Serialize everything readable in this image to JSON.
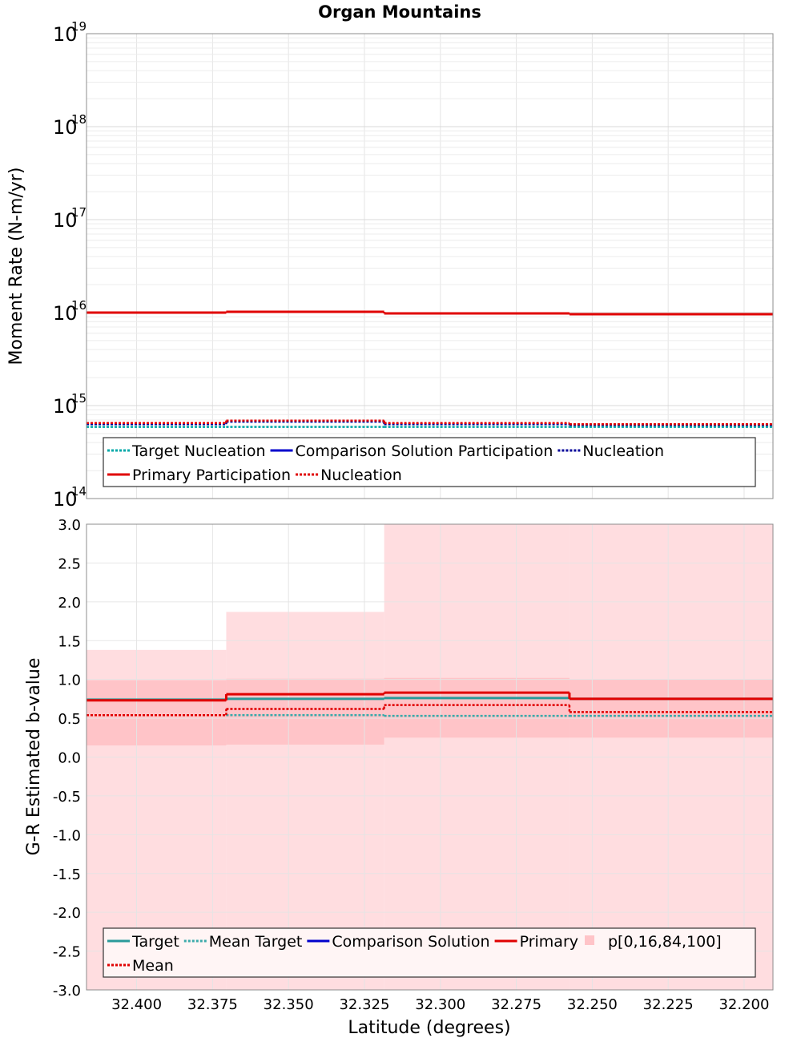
{
  "chart_data": {
    "title": "Organ Mountains",
    "xlabel": "Latitude (degrees)",
    "x_reversed": true,
    "xlim": [
      32.4165,
      32.1905
    ],
    "xticks": [
      {
        "v": 32.4,
        "label": "32.400"
      },
      {
        "v": 32.375,
        "label": "32.375"
      },
      {
        "v": 32.35,
        "label": "32.350"
      },
      {
        "v": 32.325,
        "label": "32.325"
      },
      {
        "v": 32.3,
        "label": "32.300"
      },
      {
        "v": 32.275,
        "label": "32.275"
      },
      {
        "v": 32.25,
        "label": "32.250"
      },
      {
        "v": 32.225,
        "label": "32.225"
      },
      {
        "v": 32.2,
        "label": "32.200"
      }
    ],
    "bin_edges": [
      32.4165,
      32.3705,
      32.3185,
      32.2575,
      32.1905
    ],
    "panels": [
      {
        "type": "line",
        "ylabel": "Moment Rate (N-m/yr)",
        "yscale": "log",
        "ylim_exp": [
          14,
          19
        ],
        "yticks": [
          {
            "exp": 19,
            "base": "10",
            "sup": "19"
          },
          {
            "exp": 18,
            "base": "10",
            "sup": "18"
          },
          {
            "exp": 17,
            "base": "10",
            "sup": "17"
          },
          {
            "exp": 16,
            "base": "10",
            "sup": "16"
          },
          {
            "exp": 15,
            "base": "10",
            "sup": "15"
          },
          {
            "exp": 14,
            "base": "10",
            "sup": "14"
          }
        ],
        "grid": true,
        "series": [
          {
            "name": "Target Nucleation",
            "color": "#00a8a8",
            "style": "dotted",
            "width": 2.5,
            "values": [
              590000000000000.0,
              590000000000000.0,
              590000000000000.0,
              590000000000000.0
            ]
          },
          {
            "name": "Comparison Solution Participation",
            "color": "#0000cc",
            "style": "solid",
            "width": 3,
            "values": [
              null,
              null,
              null,
              null
            ]
          },
          {
            "name": "Nucleation",
            "color": "#000099",
            "style": "dotted",
            "width": 2.5,
            "values": [
              630000000000000.0,
              670000000000000.0,
              630000000000000.0,
              620000000000000.0
            ]
          },
          {
            "name": "Primary Participation",
            "color": "#e00000",
            "style": "solid",
            "width": 3,
            "values": [
              1e+16,
              1.02e+16,
              9800000000000000.0,
              9600000000000000.0
            ]
          },
          {
            "name": "Nucleation",
            "color": "#e00000",
            "style": "dotted",
            "width": 2.5,
            "values": [
              650000000000000.0,
              690000000000000.0,
              650000000000000.0,
              630000000000000.0
            ]
          }
        ],
        "legend": {
          "placement": "bottom",
          "rows": [
            [
              {
                "label": "Target Nucleation",
                "color": "#00a8a8",
                "style": "dotted"
              },
              {
                "label": "Comparison Solution Participation",
                "color": "#0000cc",
                "style": "solid"
              },
              {
                "label": "Nucleation",
                "color": "#000099",
                "style": "dotted"
              }
            ],
            [
              {
                "label": "Primary Participation",
                "color": "#e00000",
                "style": "solid"
              },
              {
                "label": "Nucleation",
                "color": "#e00000",
                "style": "dotted"
              }
            ]
          ]
        }
      },
      {
        "type": "line",
        "ylabel": "G-R Estimated b-value",
        "yscale": "linear",
        "ylim": [
          -3.0,
          3.0
        ],
        "yticks": [
          "3.0",
          "2.5",
          "2.0",
          "1.5",
          "1.0",
          "0.5",
          "0.0",
          "-0.5",
          "-1.0",
          "-1.5",
          "-2.0",
          "-2.5",
          "-3.0"
        ],
        "grid": true,
        "band_outer": {
          "name": "p[0,16,84,100]",
          "color": "#ffdde0",
          "lo": [
            -3.0,
            -3.0,
            -3.0,
            -3.0
          ],
          "hi": [
            1.38,
            1.87,
            3.0,
            3.0
          ]
        },
        "band_inner": {
          "color": "#ffc4c8",
          "lo": [
            0.15,
            0.16,
            0.25,
            0.25
          ],
          "hi": [
            0.99,
            1.01,
            1.02,
            1.0
          ]
        },
        "series": [
          {
            "name": "Target",
            "color": "#2a9a9a",
            "style": "solid",
            "width": 3,
            "values": [
              0.74,
              0.75,
              0.76,
              0.75
            ]
          },
          {
            "name": "Mean Target",
            "color": "#3aaaaa",
            "style": "dotted",
            "width": 2.5,
            "values": [
              0.54,
              0.54,
              0.53,
              0.53
            ]
          },
          {
            "name": "Comparison Solution",
            "color": "#0000cc",
            "style": "solid",
            "width": 3,
            "values": [
              null,
              null,
              null,
              null
            ]
          },
          {
            "name": "Primary",
            "color": "#e00000",
            "style": "solid",
            "width": 3,
            "values": [
              0.73,
              0.81,
              0.83,
              0.75
            ]
          },
          {
            "name": "Mean",
            "color": "#e00000",
            "style": "dotted",
            "width": 2.5,
            "values": [
              0.54,
              0.62,
              0.67,
              0.58
            ]
          }
        ],
        "legend": {
          "placement": "bottom",
          "rows": [
            [
              {
                "label": "Target",
                "color": "#2a9a9a",
                "style": "solid"
              },
              {
                "label": "Mean Target",
                "color": "#3aaaaa",
                "style": "dotted"
              },
              {
                "label": "Comparison Solution",
                "color": "#0000cc",
                "style": "solid"
              },
              {
                "label": "Primary",
                "color": "#e00000",
                "style": "solid"
              },
              {
                "label": "p[0,16,84,100]",
                "color": "#ffc4c8",
                "style": "box"
              }
            ],
            [
              {
                "label": "Mean",
                "color": "#e00000",
                "style": "dotted"
              }
            ]
          ]
        }
      }
    ]
  }
}
